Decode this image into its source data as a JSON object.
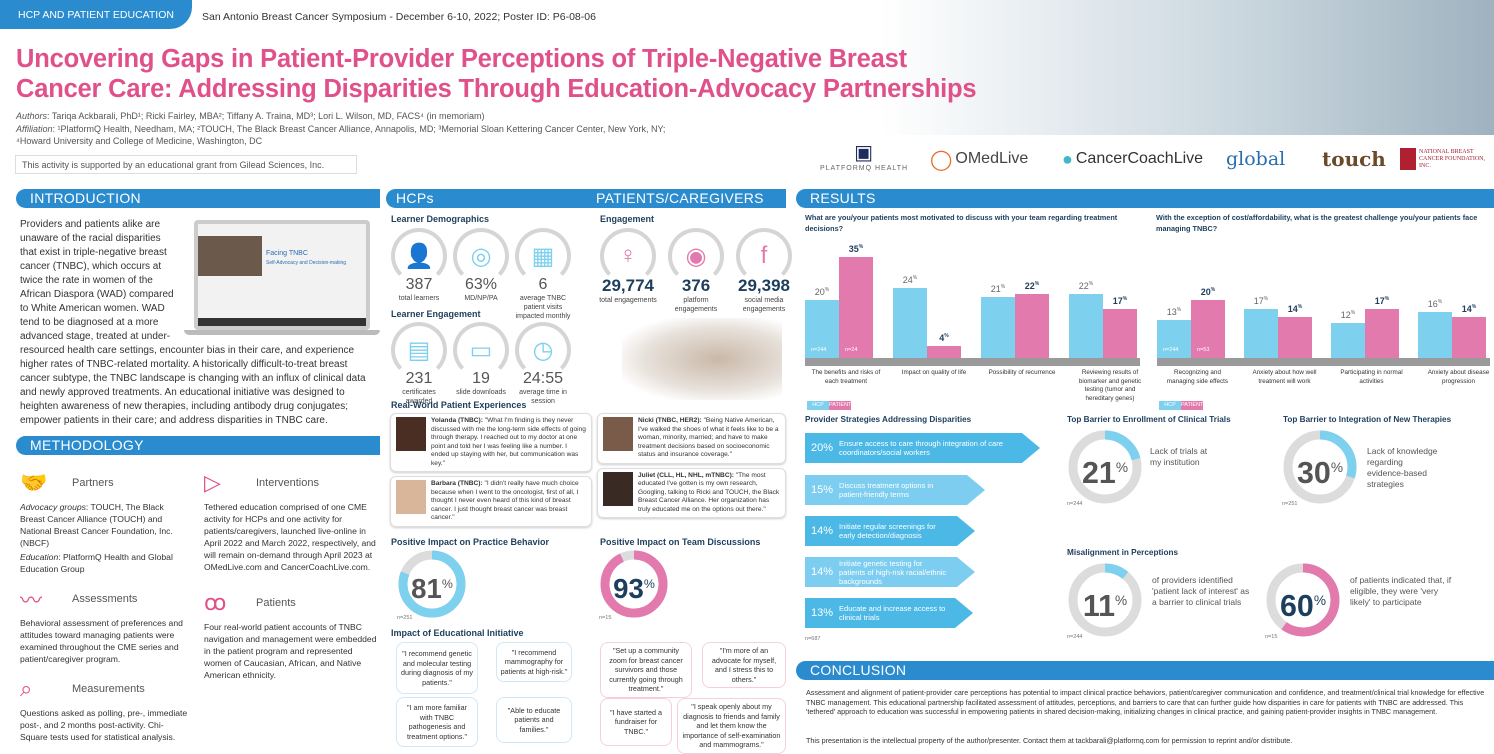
{
  "header": {
    "tab": "HCP AND PATIENT EDUCATION",
    "symposium": "San Antonio Breast Cancer Symposium - December 6-10, 2022; Poster ID: P6-08-06",
    "title_line1": "Uncovering Gaps in Patient-Provider Perceptions of Triple-Negative Breast",
    "title_line2": "Cancer Care: Addressing Disparities Through Education-Advocacy Partnerships",
    "authors_label": "Authors",
    "authors": ": Tariqa Ackbarali, PhD¹; Ricki Fairley, MBA²; Tiffany A. Traina, MD³; Lori L. Wilson, MD, FACS⁴ (in memoriam)",
    "affil_label": "Affiliation",
    "affiliation": ": ¹PlatformQ Health, Needham, MA; ²TOUCH, The Black Breast Cancer Alliance, Annapolis, MD; ³Memorial Sloan Kettering Cancer Center, New York, NY;",
    "affiliation2": "⁴Howard University and College of Medicine, Washington, DC",
    "grant": "This activity is supported by an educational grant from Gilead Sciences, Inc."
  },
  "logos": [
    "PLATFORMQ HEALTH",
    "OMedLive",
    "CancerCoachLive",
    "global",
    "touch",
    "NATIONAL BREAST CANCER FOUNDATION, INC."
  ],
  "intro": {
    "heading": "INTRODUCTION",
    "text_a": "Providers and patients alike are unaware of the racial disparities that exist in triple-negative breast cancer (TNBC), which occurs at twice the rate in women of the African Diaspora (WAD) compared to White American women. WAD tend to be diagnosed at a more advanced stage, treated at under-resourced health care",
    "text_b": "settings, encounter bias in their care, and experience higher rates of TNBC-related mortality. A historically difficult-to-treat breast cancer subtype, the TNBC landscape is changing with an influx of clinical data and newly approved treatments. An educational initiative was designed to heighten awareness of new therapies, including antibody drug conjugates; empower patients in their care; and address disparities in TNBC care.",
    "laptop_title": "Facing TNBC",
    "laptop_sub": "Self-Advocacy and Decision-making"
  },
  "methodology": {
    "heading": "METHODOLOGY",
    "partners": {
      "title": "Partners",
      "adv_label": "Advocacy groups",
      "adv": ": TOUCH, The Black Breast Cancer Alliance (TOUCH) and National Breast Cancer Foundation, Inc. (NBCF)",
      "edu_label": "Education",
      "edu": ": PlatformQ Health and Global Education Group"
    },
    "assessments": {
      "title": "Assessments",
      "text": "Behavioral assessment of preferences and attitudes toward managing patients were examined throughout the CME series and patient/caregiver program."
    },
    "measurements": {
      "title": "Measurements",
      "text": "Questions asked as polling, pre-, immediate post-, and 2 months post-activity. Chi-Square tests used for statistical analysis."
    },
    "interventions": {
      "title": "Interventions",
      "text": "Tethered education comprised of one CME activity for HCPs and one activity for patients/caregivers, launched live-online in April 2022 and March 2022, respectively, and will remain on-demand through April 2023 at OMedLive.com and CancerCoachLive.com."
    },
    "patients": {
      "title": "Patients",
      "text": "Four real-world patient accounts of TNBC navigation and management were embedded in the patient program and represented women of Caucasian, African, and Native American ethnicity."
    }
  },
  "middle": {
    "hcps": "HCPs",
    "patients": "PATIENTS/CAREGIVERS",
    "demo_title": "Learner Demographics",
    "demo": [
      {
        "num": "387",
        "label": "total learners",
        "icon": "user-icon"
      },
      {
        "num": "63%",
        "label": "MD/NP/PA",
        "icon": "target-icon"
      },
      {
        "num": "6",
        "label": "average TNBC patient visits impacted monthly",
        "icon": "calendar-icon"
      }
    ],
    "eng_title": "Learner Engagement",
    "eng": [
      {
        "num": "231",
        "label": "certificates awarded",
        "icon": "certificate-icon"
      },
      {
        "num": "19",
        "label": "slide downloads",
        "icon": "presentation-icon"
      },
      {
        "num": "24:55",
        "label": "average time in session",
        "icon": "clock-icon"
      }
    ],
    "peng_title": "Engagement",
    "peng": [
      {
        "num": "29,774",
        "label": "total engagements",
        "icon": "woman-icon"
      },
      {
        "num": "376",
        "label": "platform engagements",
        "icon": "webcam-icon"
      },
      {
        "num": "29,398",
        "label": "social media engagements",
        "icon": "laptop-facebook-icon"
      }
    ],
    "rw_title": "Real-World Patient Experiences",
    "quotes": [
      {
        "name": "Yolanda (TNBC):",
        "text": " \"What I'm finding is they never discussed with me the long-term side effects of going through therapy. I reached out to my doctor at one point and told her I was feeling like a number. I ended up staying with her, but communication was key.\""
      },
      {
        "name": "Barbara (TNBC):",
        "text": " \"I didn't really have much choice because when I went to the oncologist, first of all, I thought I never even heard of this kind of breast cancer. I just thought breast cancer was breast cancer.\""
      },
      {
        "name": "Nicki (TNBC, HER2):",
        "text": " \"Being Native American, I've walked the shoes of what it feels like to be a woman, minority, married; and have to make treatment decisions based on socioeconomic status and insurance coverage.\""
      },
      {
        "name": "Juliet (CLL, HL, NHL, mTNBC):",
        "text": " \"The most educated I've gotten is my own research, Googling, talking to Ricki and TOUCH, the Black Breast Cancer Alliance. Her organization has truly educated me on the options out there.\""
      }
    ],
    "practice_title": "Positive Impact on Practice Behavior",
    "practice_value": 81,
    "practice_label": "81",
    "practice_n": "n=251",
    "team_title": "Positive Impact on Team Discussions",
    "team_value": 93,
    "team_label": "93",
    "team_n": "n=15",
    "pct": "%",
    "impact_title": "Impact of Educational Initiative",
    "hcp_bubbles": [
      "\"I recommend genetic and molecular testing during diagnosis of my patients.\"",
      "\"I recommend mammography for patients at high-risk.\"",
      "\"I am more familiar with TNBC pathogenesis and treatment options.\"",
      "\"Able to educate patients and families.\""
    ],
    "pt_bubbles": [
      "\"Set up a community zoom for breast cancer survivors and those currently going through treatment.\"",
      "\"I'm more of an advocate for myself, and I stress this to others.\"",
      "\"I have started a fundraiser for TNBC.\"",
      "\"I speak openly about my diagnosis to friends and family and let them know the importance of self-examination and mammograms.\""
    ]
  },
  "results": {
    "heading": "RESULTS",
    "legend": [
      "HCP",
      "PATIENT"
    ],
    "colors": {
      "hcp": "#7dd0ee",
      "patient": "#e27aae",
      "navy": "#1d3e5c",
      "blue": "#2a8ccf",
      "pink": "#e0508a"
    }
  },
  "chart_data": [
    {
      "type": "bar",
      "title": "What are you/your patients most motivated to discuss with your team regarding treatment decisions?",
      "categories": [
        "The benefits and risks of each treatment",
        "Impact on quality of life",
        "Possibility of recurrence",
        "Reviewing results of biomarker and genetic testing (tumor and hereditary genes)"
      ],
      "series": [
        {
          "name": "HCP",
          "values": [
            20,
            24,
            21,
            22
          ],
          "n": "n=244"
        },
        {
          "name": "PATIENT",
          "values": [
            35,
            4,
            22,
            17
          ],
          "n": "n=24"
        }
      ],
      "unit": "%",
      "legend": "bottom-left"
    },
    {
      "type": "bar",
      "title": "With the exception of cost/affordability, what is the greatest challenge you/your patients face managing TNBC?",
      "categories": [
        "Recognizing and managing side effects",
        "Anxiety about how well treatment will work",
        "Participating in normal activities",
        "Anxiety about disease progression"
      ],
      "series": [
        {
          "name": "HCP",
          "values": [
            13,
            17,
            12,
            16
          ],
          "n": "n=244"
        },
        {
          "name": "PATIENT",
          "values": [
            20,
            14,
            17,
            14
          ],
          "n": "n=53"
        }
      ],
      "unit": "%",
      "legend": "bottom-left"
    }
  ],
  "strategies": {
    "title": "Provider Strategies Addressing Disparities",
    "n": "n=687",
    "items": [
      {
        "value": "20%",
        "text": "Ensure access to care through integration of care coordinators/social workers"
      },
      {
        "value": "15%",
        "text": "Discuss treatment options in patient-friendly terms"
      },
      {
        "value": "14%",
        "text": "Initiate regular screenings for early detection/diagnosis"
      },
      {
        "value": "14%",
        "text": "Initiate genetic testing for patients of high-risk racial/ethnic backgrounds"
      },
      {
        "value": "13%",
        "text": "Educate and increase access to clinical trials"
      }
    ]
  },
  "barriers": {
    "trials": {
      "title": "Top Barrier to Enrollment of Clinical Trials",
      "value": 21,
      "label": "21",
      "text": "Lack of trials at my institution",
      "n": "n=244"
    },
    "therapies": {
      "title": "Top Barrier to Integration of New Therapies",
      "value": 30,
      "label": "30",
      "text": "Lack of knowledge regarding evidence-based strategies",
      "n": "n=251"
    }
  },
  "misalignment": {
    "title": "Misalignment in Perceptions",
    "providers": {
      "value": 11,
      "label": "11",
      "text": "of providers identified 'patient lack of interest' as a barrier to clinical trials",
      "n": "n=244"
    },
    "patients": {
      "value": 60,
      "label": "60",
      "text": "of patients indicated that, if eligible, they were 'very likely' to participate",
      "n": "n=15"
    }
  },
  "conclusion": {
    "heading": "CONCLUSION",
    "text": "Assessment and alignment of patient-provider care perceptions has potential to impact clinical practice behaviors, patient/caregiver communication and confidence, and treatment/clinical trial knowledge for effective TNBC management. This educational partnership facilitated assessment of attitudes, perceptions, and barriers to care that can further guide how disparities in care for patients with TNBC are addressed. This 'tethered' approach to education was successful in empowering patients in shared decision-making, initializing changes in clinical practice, and gaining patient-provider insights in TNBC management.",
    "ip": "This presentation is the intellectual property of the author/presenter. Contact them at tackbarali@platformq.com for permission to reprint and/or distribute."
  }
}
